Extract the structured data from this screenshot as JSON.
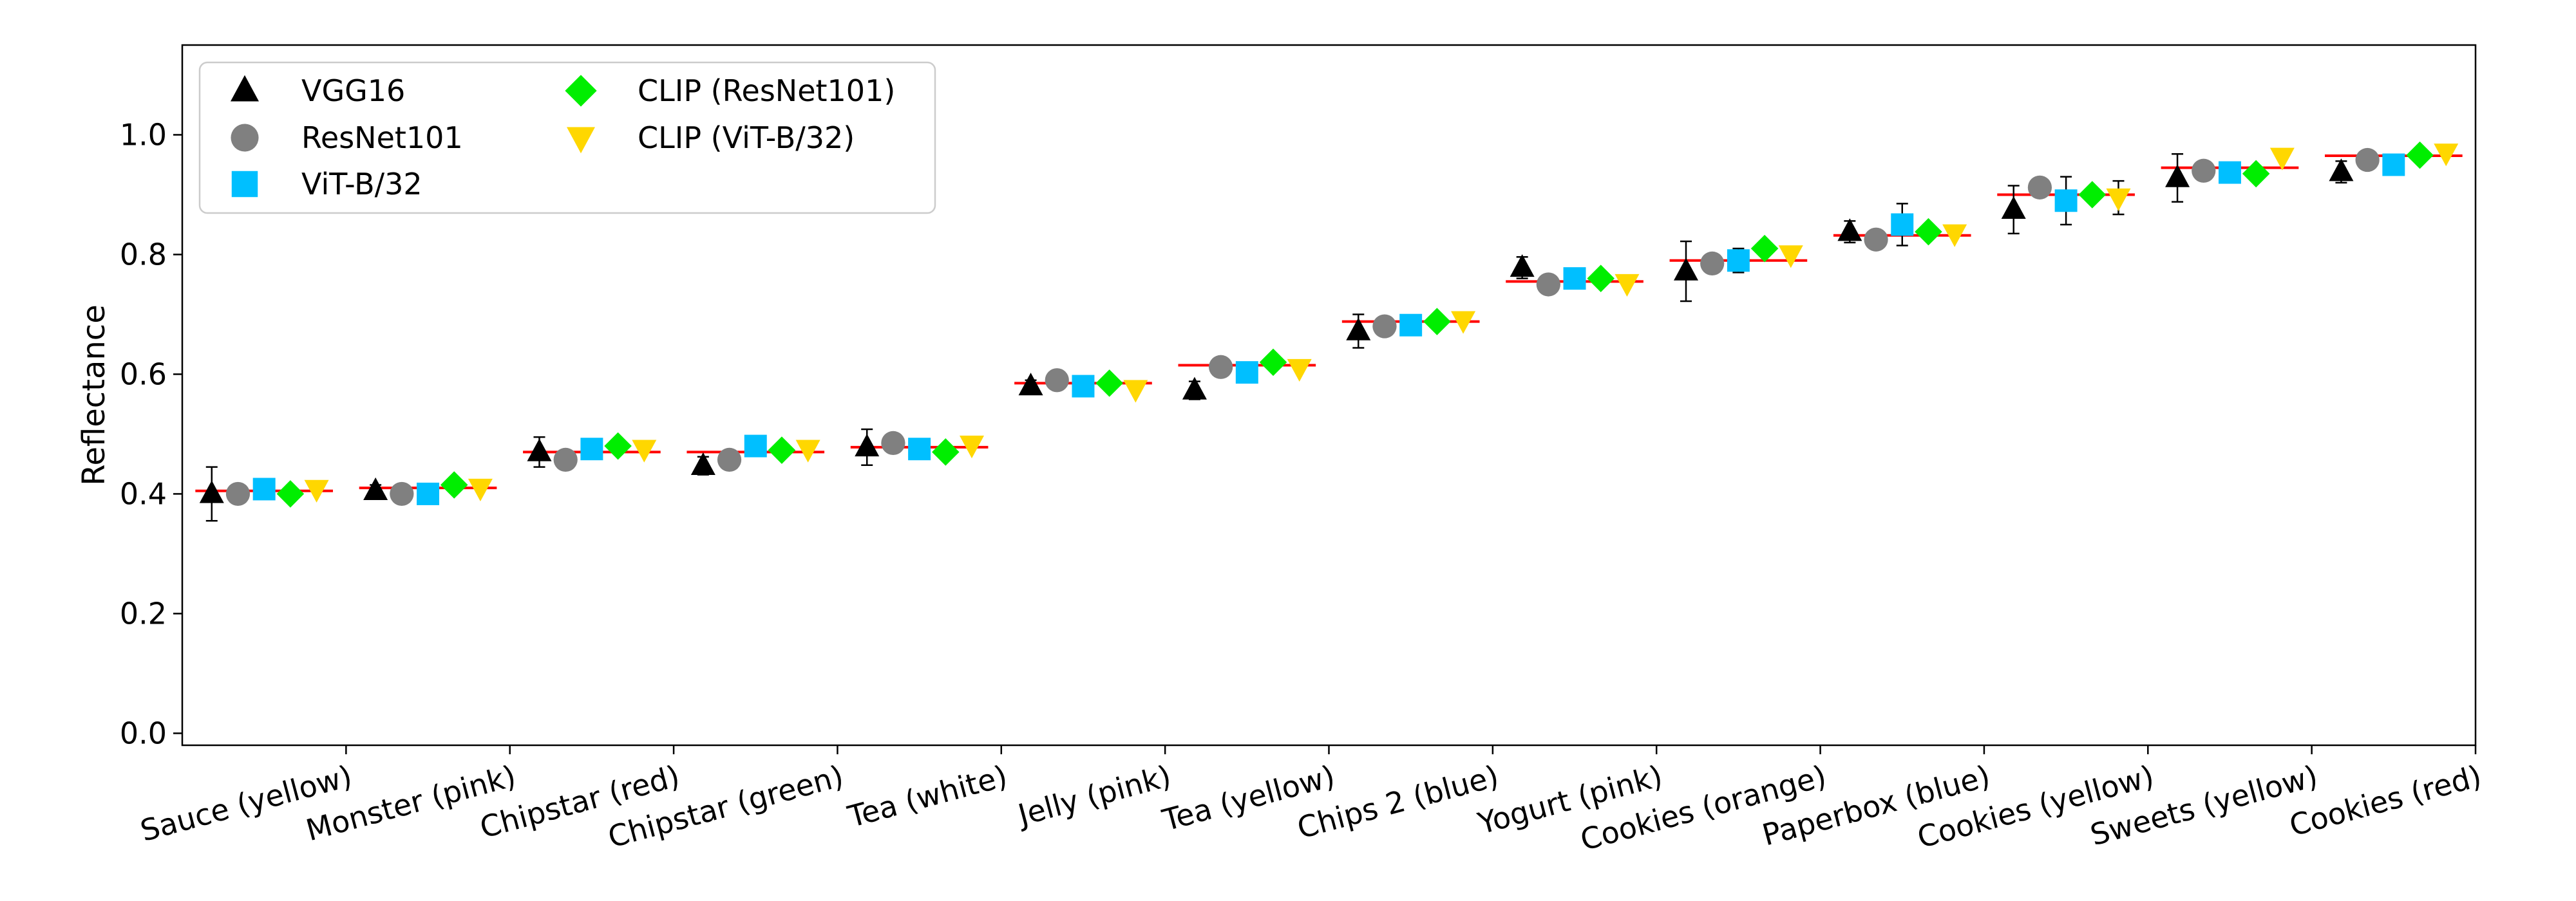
{
  "chart_data": {
    "type": "scatter",
    "ylabel": "Reflectance",
    "xlabel": "",
    "ylim": [
      -0.02,
      1.15
    ],
    "yticks": [
      0.0,
      0.2,
      0.4,
      0.6,
      0.8,
      1.0
    ],
    "ytick_labels": [
      "0.0",
      "0.2",
      "0.4",
      "0.6",
      "0.8",
      "1.0"
    ],
    "grid": false,
    "legend_position": "top-left",
    "categories": [
      "Sauce (yellow)",
      "Monster (pink)",
      "Chipstar (red)",
      "Chipstar (green)",
      "Tea (white)",
      "Jelly (pink)",
      "Tea (yellow)",
      "Chips 2 (blue)",
      "Yogurt (pink)",
      "Cookies (orange)",
      "Paperbox (blue)",
      "Cookies (yellow)",
      "Sweets (yellow)",
      "Cookies (red)"
    ],
    "ground_truth": {
      "color": "#ff0000",
      "values": [
        0.405,
        0.41,
        0.47,
        0.47,
        0.478,
        0.585,
        0.615,
        0.688,
        0.755,
        0.79,
        0.832,
        0.9,
        0.945,
        0.965
      ]
    },
    "series": [
      {
        "name": "VGG16",
        "marker": "triangle-up",
        "color": "#000000",
        "values": [
          0.4,
          0.405,
          0.47,
          0.447,
          0.478,
          0.58,
          0.573,
          0.672,
          0.778,
          0.772,
          0.838,
          0.875,
          0.928,
          0.938
        ],
        "errors": [
          0.045,
          0.01,
          0.025,
          0.015,
          0.03,
          0.01,
          0.015,
          0.028,
          0.018,
          0.05,
          0.018,
          0.04,
          0.04,
          0.018
        ]
      },
      {
        "name": "ResNet101",
        "marker": "circle",
        "color": "#808080",
        "values": [
          0.4,
          0.4,
          0.457,
          0.457,
          0.485,
          0.59,
          0.612,
          0.68,
          0.75,
          0.785,
          0.825,
          0.912,
          0.94,
          0.958
        ],
        "errors": [
          0.0,
          0.0,
          0.0,
          0.0,
          0.0,
          0.0,
          0.0,
          0.0,
          0.0,
          0.0,
          0.0,
          0.0,
          0.0,
          0.0
        ]
      },
      {
        "name": "ViT-B/32",
        "marker": "square",
        "color": "#00bfff",
        "values": [
          0.408,
          0.4,
          0.475,
          0.48,
          0.475,
          0.58,
          0.603,
          0.682,
          0.76,
          0.79,
          0.85,
          0.89,
          0.937,
          0.95
        ],
        "errors": [
          0.0,
          0.0,
          0.0,
          0.0,
          0.0,
          0.0,
          0.0,
          0.0,
          0.0,
          0.02,
          0.035,
          0.04,
          0.0,
          0.0
        ]
      },
      {
        "name": "CLIP (ResNet101)",
        "marker": "diamond",
        "color": "#00ee00",
        "values": [
          0.4,
          0.415,
          0.48,
          0.473,
          0.47,
          0.585,
          0.62,
          0.688,
          0.76,
          0.81,
          0.838,
          0.9,
          0.935,
          0.966
        ],
        "errors": [
          0.0,
          0.0,
          0.0,
          0.0,
          0.0,
          0.0,
          0.0,
          0.0,
          0.0,
          0.0,
          0.0,
          0.0,
          0.0,
          0.0
        ]
      },
      {
        "name": "CLIP (ViT-B/32)",
        "marker": "triangle-down",
        "color": "#ffd700",
        "values": [
          0.408,
          0.41,
          0.475,
          0.475,
          0.482,
          0.575,
          0.61,
          0.69,
          0.752,
          0.8,
          0.835,
          0.895,
          0.963,
          0.97
        ],
        "errors": [
          0.0,
          0.0,
          0.0,
          0.0,
          0.0,
          0.0,
          0.0,
          0.0,
          0.0,
          0.0,
          0.0,
          0.028,
          0.0,
          0.0
        ]
      }
    ]
  }
}
